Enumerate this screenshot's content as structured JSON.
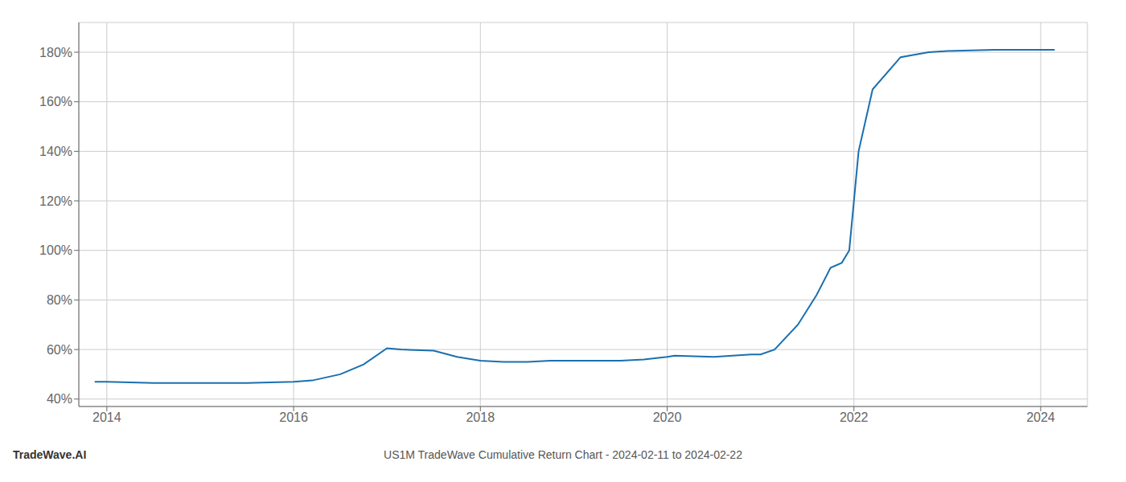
{
  "chart_data": {
    "type": "line",
    "title": "US1M TradeWave Cumulative Return Chart - 2024-02-11 to 2024-02-22",
    "annotations": [
      "TradeWave.AI"
    ],
    "x": [
      2013.87,
      2014.0,
      2014.5,
      2015.0,
      2015.5,
      2016.0,
      2016.2,
      2016.5,
      2016.75,
      2017.0,
      2017.15,
      2017.5,
      2017.75,
      2018.0,
      2018.25,
      2018.5,
      2018.75,
      2019.0,
      2019.25,
      2019.5,
      2019.75,
      2020.0,
      2020.08,
      2020.5,
      2020.9,
      2021.0,
      2021.15,
      2021.4,
      2021.6,
      2021.75,
      2021.87,
      2021.95,
      2022.05,
      2022.2,
      2022.5,
      2022.8,
      2023.0,
      2023.5,
      2024.0,
      2024.15
    ],
    "values": [
      47,
      47,
      46.5,
      46.5,
      46.5,
      47,
      47.5,
      50,
      54,
      60.5,
      60,
      59.5,
      57,
      55.5,
      55,
      55,
      55.5,
      55.5,
      55.5,
      55.5,
      56,
      57,
      57.5,
      57,
      58,
      58,
      60,
      70,
      82,
      93,
      95,
      100,
      140,
      165,
      178,
      180,
      180.5,
      181,
      181,
      181
    ],
    "color": "#1a6faf",
    "xlim": [
      2013.7,
      2024.5
    ],
    "ylim": [
      37,
      192
    ],
    "xticks": [
      2014,
      2016,
      2018,
      2020,
      2022,
      2024
    ],
    "yticks": [
      {
        "value": 40,
        "label": "40%"
      },
      {
        "value": 60,
        "label": "60%"
      },
      {
        "value": 80,
        "label": "80%"
      },
      {
        "value": 100,
        "label": "100%"
      },
      {
        "value": 120,
        "label": "120%"
      },
      {
        "value": 140,
        "label": "140%"
      },
      {
        "value": 160,
        "label": "160%"
      },
      {
        "value": 180,
        "label": "180%"
      }
    ],
    "grid": true
  }
}
